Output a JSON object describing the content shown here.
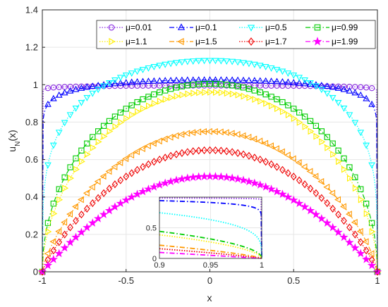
{
  "chart_data": [
    {
      "type": "line",
      "xlabel": "x",
      "ylabel": "u_N(x)",
      "xlim": [
        -1,
        1
      ],
      "ylim": [
        0,
        1.4
      ],
      "xticks": [
        "-1",
        "-0.5",
        "0",
        "0.5",
        "1"
      ],
      "yticks": [
        "0",
        "0.2",
        "0.4",
        "0.6",
        "0.8",
        "1",
        "1.2",
        "1.4"
      ],
      "grid": true,
      "legend_placement": "top-right",
      "marker_count": 61,
      "series": [
        {
          "name": "μ=0.01",
          "color": "#8a2be2",
          "marker": "circle",
          "line": "dotted",
          "peak": 0.995,
          "shape": 0.005
        },
        {
          "name": "μ=0.1",
          "color": "#0000ff",
          "marker": "triangle-up",
          "line": "dashdot",
          "peak": 1.025,
          "shape": 0.05
        },
        {
          "name": "μ=0.5",
          "color": "#00ffff",
          "marker": "triangle-down",
          "line": "dotted",
          "peak": 1.13,
          "shape": 0.25
        },
        {
          "name": "μ=0.99",
          "color": "#00cc00",
          "marker": "square",
          "line": "dashdot",
          "peak": 1.005,
          "shape": 0.495
        },
        {
          "name": "μ=1.1",
          "color": "#ffee00",
          "marker": "triangle-right",
          "line": "dotted",
          "peak": 0.96,
          "shape": 0.55
        },
        {
          "name": "μ=1.5",
          "color": "#ff9900",
          "marker": "triangle-left",
          "line": "dashdot",
          "peak": 0.75,
          "shape": 0.75
        },
        {
          "name": "μ=1.7",
          "color": "#ee0000",
          "marker": "diamond",
          "line": "dotted",
          "peak": 0.65,
          "shape": 0.85
        },
        {
          "name": "μ=1.99",
          "color": "#ff00ff",
          "marker": "star",
          "line": "dashdot",
          "peak": 0.51,
          "shape": 0.995
        }
      ]
    },
    {
      "type": "line",
      "role": "inset",
      "xlim": [
        0.9,
        1
      ],
      "ylim": [
        0,
        1
      ],
      "xticks": [
        "0.9",
        "0.95",
        "1"
      ],
      "yticks": [
        "0",
        "0.5"
      ],
      "grid": true
    }
  ]
}
